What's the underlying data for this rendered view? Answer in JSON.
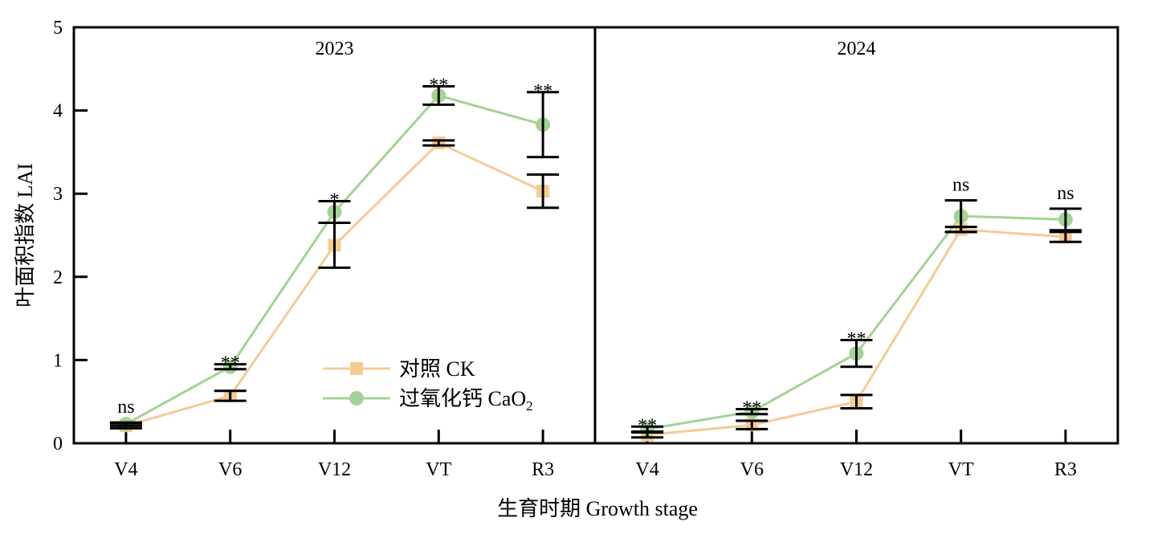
{
  "chart_data": {
    "type": "line",
    "ylabel": "叶面积指数 LAI",
    "xlabel": "生育时期 Growth stage",
    "ylim": [
      0,
      5
    ],
    "yticks": [
      0,
      1,
      2,
      3,
      4,
      5
    ],
    "grid": false,
    "legend_position": "center-bottom of left panel",
    "legend": [
      {
        "name": "对照 CK",
        "color": "#F5CB93",
        "marker": "square"
      },
      {
        "name": "过氧化钙 CaO",
        "subscript": "2",
        "color": "#A3D394",
        "marker": "circle"
      }
    ],
    "panels": [
      {
        "title": "2023",
        "categories": [
          "V4",
          "V6",
          "V12",
          "VT",
          "R3"
        ],
        "series": [
          {
            "name": "对照 CK",
            "values": [
              0.21,
              0.57,
              2.38,
              3.61,
              3.03
            ],
            "errors": [
              0.03,
              0.06,
              0.27,
              0.03,
              0.2
            ]
          },
          {
            "name": "过氧化钙 CaO2",
            "values": [
              0.23,
              0.92,
              2.78,
              4.18,
              3.83
            ],
            "errors": [
              0.02,
              0.03,
              0.13,
              0.11,
              0.39
            ]
          }
        ],
        "significance": [
          "ns",
          "**",
          "*",
          "**",
          "**"
        ]
      },
      {
        "title": "2024",
        "categories": [
          "V4",
          "V6",
          "V12",
          "VT",
          "R3"
        ],
        "series": [
          {
            "name": "对照 CK",
            "values": [
              0.1,
              0.22,
              0.5,
              2.57,
              2.48
            ],
            "errors": [
              0.03,
              0.05,
              0.08,
              0.03,
              0.06
            ]
          },
          {
            "name": "过氧化钙 CaO2",
            "values": [
              0.17,
              0.38,
              1.08,
              2.73,
              2.69
            ],
            "errors": [
              0.03,
              0.03,
              0.16,
              0.19,
              0.13
            ]
          }
        ],
        "significance": [
          "**",
          "**",
          "**",
          "ns",
          "ns"
        ]
      }
    ]
  }
}
